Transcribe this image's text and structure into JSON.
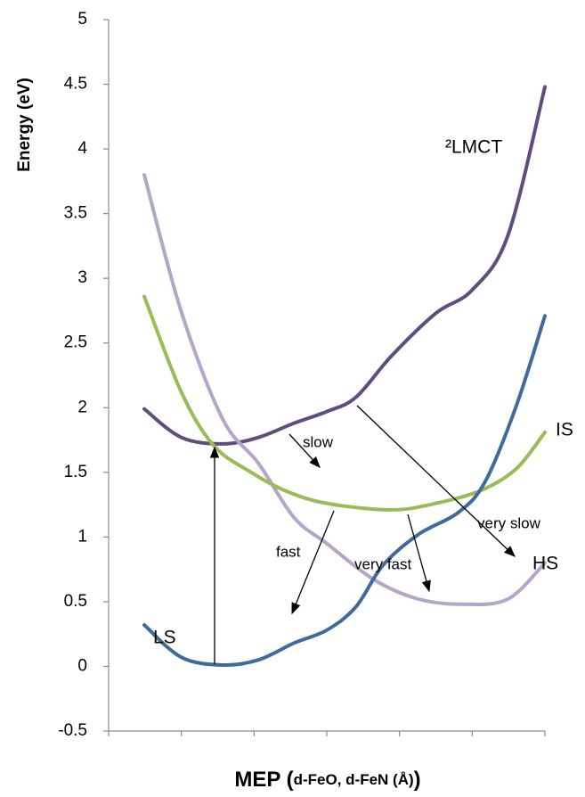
{
  "chart_data": {
    "type": "line",
    "y_label": "Energy (eV)",
    "x_label": [
      "MEP (",
      "d-FeO, d-FeN (Å)",
      ")"
    ],
    "ylim": [
      -0.5,
      5
    ],
    "yticks": [
      -0.5,
      0,
      0.5,
      1,
      1.5,
      2,
      2.5,
      3,
      3.5,
      4,
      4.5,
      5
    ],
    "xlim": [
      0,
      6
    ],
    "xticks": [
      0,
      1,
      2,
      3,
      4,
      5,
      6
    ],
    "series": [
      {
        "name": "LS",
        "color": "#3f6b9c",
        "x": [
          0.49,
          1.0,
          1.57,
          2.06,
          2.55,
          3.0,
          3.4,
          3.77,
          4.26,
          4.81,
          5.18,
          5.61,
          6.0
        ],
        "values": [
          0.32,
          0.07,
          0.01,
          0.05,
          0.18,
          0.28,
          0.46,
          0.78,
          1.02,
          1.19,
          1.43,
          2.02,
          2.71
        ]
      },
      {
        "name": "IS",
        "color": "#9bbb59",
        "x": [
          0.49,
          1.0,
          1.44,
          1.93,
          2.42,
          3.0,
          3.89,
          4.5,
          5.12,
          5.61,
          6.0
        ],
        "values": [
          2.86,
          2.12,
          1.71,
          1.51,
          1.36,
          1.26,
          1.21,
          1.26,
          1.36,
          1.53,
          1.81
        ]
      },
      {
        "name": "HS",
        "color": "#b4a5c9",
        "x": [
          0.49,
          1.0,
          1.57,
          2.06,
          2.55,
          3.0,
          3.65,
          4.26,
          4.87,
          5.49,
          6.0
        ],
        "values": [
          3.8,
          2.74,
          1.91,
          1.57,
          1.15,
          0.95,
          0.67,
          0.52,
          0.48,
          0.52,
          0.8
        ]
      },
      {
        "name": "²LMCT",
        "color": "#614c7e",
        "x": [
          0.49,
          1.0,
          1.57,
          2.06,
          2.55,
          3.0,
          3.4,
          3.89,
          4.5,
          5.0,
          5.49,
          6.0
        ],
        "values": [
          1.99,
          1.77,
          1.72,
          1.77,
          1.88,
          1.97,
          2.08,
          2.4,
          2.73,
          2.91,
          3.33,
          4.48
        ]
      }
    ],
    "annotations": [
      "slow",
      "fast",
      "very fast",
      "very slow"
    ]
  }
}
